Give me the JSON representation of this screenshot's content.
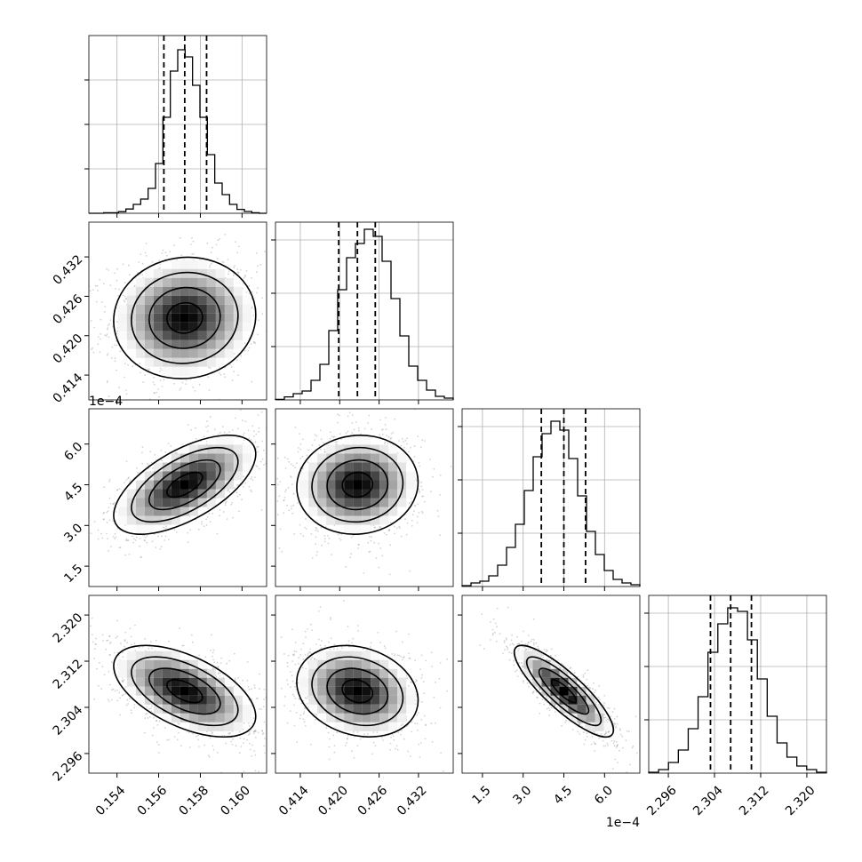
{
  "chart_data": {
    "type": "corner",
    "parameters": [
      {
        "ticks": [
          {
            "value": 0.154,
            "label": "0.154"
          },
          {
            "value": 0.156,
            "label": "0.156"
          },
          {
            "value": 0.158,
            "label": "0.158"
          },
          {
            "value": 0.16,
            "label": "0.160"
          }
        ],
        "range": [
          0.15265,
          0.16118
        ],
        "offset_text": "",
        "quantiles": [
          0.15625,
          0.15725,
          0.1583
        ],
        "hist": [
          0,
          0,
          0.003,
          0.003,
          0.009,
          0.024,
          0.05,
          0.08,
          0.14,
          0.28,
          0.54,
          0.8,
          0.92,
          0.88,
          0.72,
          0.54,
          0.33,
          0.17,
          0.105,
          0.05,
          0.022,
          0.01,
          0.003,
          0
        ],
        "hist_yticks": [
          0.25,
          0.5,
          0.75
        ]
      },
      {
        "ticks": [
          {
            "value": 0.414,
            "label": "0.414"
          },
          {
            "value": 0.42,
            "label": "0.420"
          },
          {
            "value": 0.426,
            "label": "0.426"
          },
          {
            "value": 0.432,
            "label": "0.432"
          }
        ],
        "range": [
          0.41022,
          0.43729
        ],
        "offset_text": "",
        "quantiles": [
          0.41985,
          0.4227,
          0.42542
        ],
        "hist": [
          0.003,
          0.017,
          0.035,
          0.05,
          0.11,
          0.2,
          0.39,
          0.62,
          0.8,
          0.88,
          0.96,
          0.92,
          0.78,
          0.57,
          0.36,
          0.19,
          0.11,
          0.055,
          0.02,
          0.01
        ],
        "hist_yticks": [
          0.3,
          0.6,
          0.9
        ]
      },
      {
        "ticks": [
          {
            "value": 1.5,
            "label": "1.5"
          },
          {
            "value": 3.0,
            "label": "3.0"
          },
          {
            "value": 4.5,
            "label": "4.5"
          },
          {
            "value": 6.0,
            "label": "6.0"
          }
        ],
        "range": [
          0.75,
          7.3
        ],
        "offset_text": "1e−4",
        "quantiles": [
          3.67,
          4.5,
          5.3
        ],
        "hist": [
          0.005,
          0.02,
          0.03,
          0.06,
          0.12,
          0.22,
          0.35,
          0.54,
          0.73,
          0.86,
          0.93,
          0.88,
          0.72,
          0.51,
          0.31,
          0.18,
          0.09,
          0.04,
          0.02,
          0.01
        ],
        "hist_yticks": [
          0.3,
          0.6,
          0.9
        ]
      },
      {
        "ticks": [
          {
            "value": 2.296,
            "label": "2.296"
          },
          {
            "value": 2.304,
            "label": "2.304"
          },
          {
            "value": 2.312,
            "label": "2.312"
          },
          {
            "value": 2.32,
            "label": "2.320"
          }
        ],
        "range": [
          2.2926,
          2.3234
        ],
        "offset_text": "",
        "quantiles": [
          2.3033,
          2.3068,
          2.3104
        ],
        "hist": [
          0.005,
          0.02,
          0.06,
          0.13,
          0.25,
          0.43,
          0.68,
          0.84,
          0.93,
          0.91,
          0.75,
          0.53,
          0.32,
          0.17,
          0.09,
          0.04,
          0.02,
          0.005
        ],
        "hist_yticks": [
          0.3,
          0.6,
          0.9
        ]
      }
    ],
    "joint": [
      {
        "x": 0,
        "y": 1,
        "mean": [
          0.15725,
          0.4227
        ],
        "sd": [
          0.00155,
          0.0042
        ],
        "corr": 0.05
      },
      {
        "x": 0,
        "y": 2,
        "mean": [
          0.15725,
          4.5
        ],
        "sd": [
          0.00155,
          0.83
        ],
        "corr": 0.62
      },
      {
        "x": 1,
        "y": 2,
        "mean": [
          0.4227,
          4.5
        ],
        "sd": [
          0.0042,
          0.83
        ],
        "corr": 0.05
      },
      {
        "x": 0,
        "y": 3,
        "mean": [
          0.15725,
          2.3068
        ],
        "sd": [
          0.00155,
          0.0036
        ],
        "corr": -0.55
      },
      {
        "x": 1,
        "y": 3,
        "mean": [
          0.4227,
          2.3068
        ],
        "sd": [
          0.0042,
          0.0036
        ],
        "corr": -0.2
      },
      {
        "x": 2,
        "y": 3,
        "mean": [
          4.5,
          2.3068
        ],
        "sd": [
          0.83,
          0.0036
        ],
        "corr": -0.85
      }
    ],
    "contour_levels_sigma": [
      0.5,
      1.0,
      1.5,
      2.0
    ],
    "grid": true,
    "colors": {
      "ink": "#000000",
      "grid": "#b0b0b0",
      "scatter": "#808080"
    }
  }
}
